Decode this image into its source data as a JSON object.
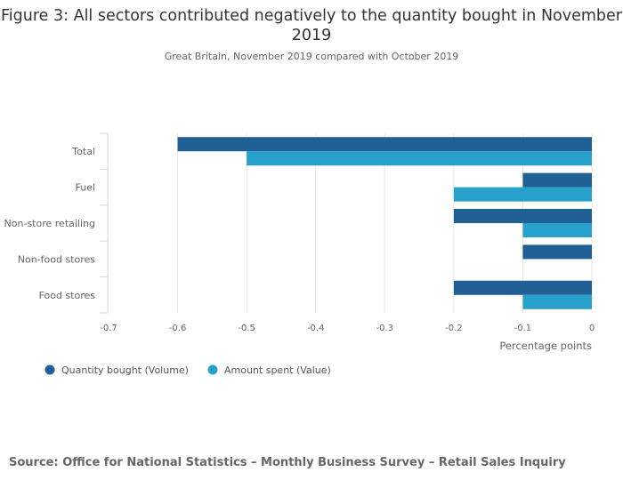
{
  "chart_data": {
    "type": "bar",
    "orientation": "horizontal",
    "title": "Figure 3: All sectors contributed negatively to the quantity bought in November 2019",
    "subtitle": "Great Britain, November 2019 compared with October 2019",
    "categories": [
      "Total",
      "Fuel",
      "Non-store retailing",
      "Non-food stores",
      "Food stores"
    ],
    "series": [
      {
        "name": "Quantity bought (Volume)",
        "color": "#206095",
        "values": [
          -0.6,
          -0.1,
          -0.2,
          -0.1,
          -0.2
        ]
      },
      {
        "name": "Amount spent (Value)",
        "color": "#27a0cc",
        "values": [
          -0.5,
          -0.2,
          -0.1,
          0,
          -0.1
        ]
      }
    ],
    "xlabel": "Percentage points",
    "ylabel": "",
    "xlim": [
      -0.7,
      0
    ],
    "xticks": [
      -0.7,
      -0.6,
      -0.5,
      -0.4,
      -0.3,
      -0.2,
      -0.1,
      0
    ],
    "xtick_labels": [
      "-0.7",
      "-0.6",
      "-0.5",
      "-0.4",
      "-0.3",
      "-0.2",
      "-0.1",
      "0"
    ],
    "grid": true,
    "legend_position": "bottom-left"
  },
  "source": "Source: Office for National Statistics – Monthly Business Survey – Retail Sales Inquiry"
}
